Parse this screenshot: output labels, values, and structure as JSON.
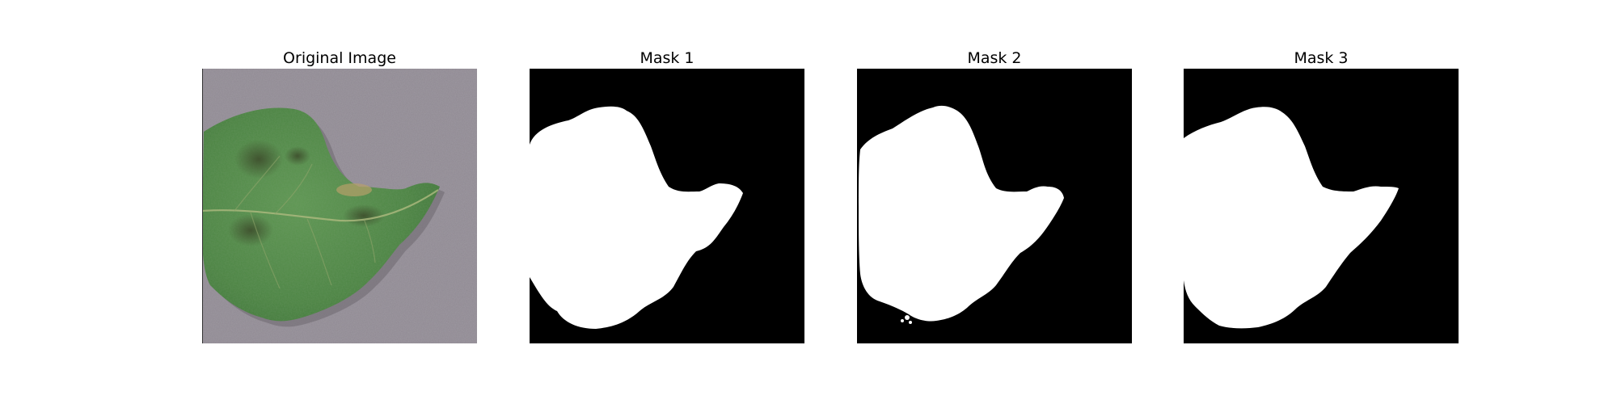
{
  "figure": {
    "panels": [
      {
        "title": "Original Image"
      },
      {
        "title": "Mask 1"
      },
      {
        "title": "Mask 2"
      },
      {
        "title": "Mask 3"
      }
    ],
    "colors": {
      "background": "#ffffff",
      "mask_foreground": "#ffffff",
      "mask_background": "#000000",
      "surface": "#8f8992",
      "leaf": "#4f8a45"
    }
  }
}
